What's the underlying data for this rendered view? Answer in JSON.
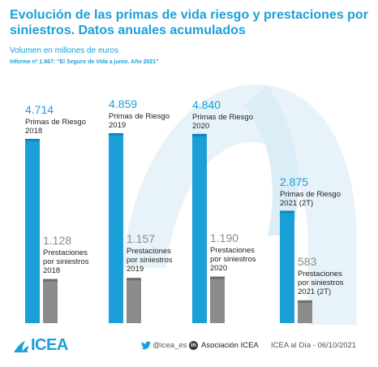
{
  "header": {
    "title": "Evolución de las primas de vida riesgo y prestaciones por siniestros. Datos anuales acumulados",
    "subtitle": "Volumen en millones de euros",
    "source": "Informe nº 1.667: \"El Seguro de Vida a junio. Año 2021\""
  },
  "chart_data": {
    "type": "bar",
    "title": "Evolución de las primas de vida riesgo y prestaciones por siniestros. Datos anuales acumulados",
    "ylabel": "Volumen en millones de euros",
    "categories": [
      "2018",
      "2019",
      "2020",
      "2021 (2T)"
    ],
    "series": [
      {
        "name": "Primas de Riesgo",
        "values": [
          4714,
          4859,
          4840,
          2875
        ],
        "value_labels": [
          "4.714",
          "4.859",
          "4.840",
          "2.875"
        ],
        "labels": [
          "Primas de Riesgo\n2018",
          "Primas de Riesgo\n2019",
          "Primas de Riesgo\n2020",
          "Primas de Riesgo\n2021 (2T)"
        ],
        "color": "#1a9fd8"
      },
      {
        "name": "Prestaciones por siniestros",
        "values": [
          1128,
          1157,
          1190,
          583
        ],
        "value_labels": [
          "1.128",
          "1.157",
          "1.190",
          "583"
        ],
        "labels": [
          "Prestaciones\npor siniestros\n2018",
          "Prestaciones\npor siniestros\n2019",
          "Prestaciones\npor siniestros\n2020",
          "Prestaciones\npor siniestros\n2021 (2T)"
        ],
        "color": "#8c8c8c"
      }
    ],
    "ylim": [
      0,
      4859
    ],
    "grid": false,
    "legend": "none"
  },
  "footer": {
    "logo": "ICEA",
    "twitter": "@icea_es",
    "linkedin": "Asociación ICEA",
    "credit": "ICEA al Día - 06/10/2021"
  },
  "colors": {
    "accent": "#1a9fd8",
    "gray_bar": "#8c8c8c",
    "background_shape": "#e8f3f9"
  },
  "icons": [
    "icea-logo-icon",
    "twitter-icon",
    "linkedin-icon"
  ]
}
